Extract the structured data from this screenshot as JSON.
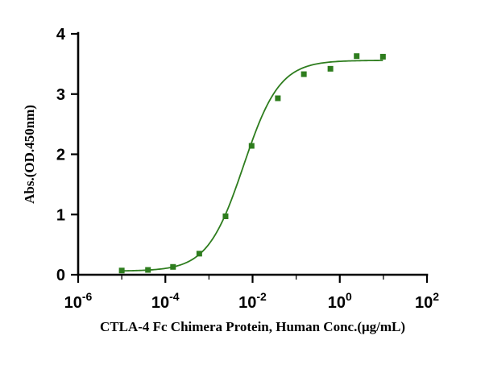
{
  "chart_data": {
    "type": "scatter",
    "xscale": "log",
    "xlabel": "CTLA-4 Fc Chimera Protein, Human Conc.(μg/mL)",
    "ylabel": "Abs.(OD.450nm)",
    "xlim": [
      1e-06,
      100
    ],
    "ylim": [
      0,
      4
    ],
    "x_ticks": [
      {
        "base": "10",
        "exp": "-6"
      },
      {
        "base": "10",
        "exp": "-4"
      },
      {
        "base": "10",
        "exp": "-2"
      },
      {
        "base": "10",
        "exp": "0"
      },
      {
        "base": "10",
        "exp": "2"
      }
    ],
    "y_ticks": [
      "0",
      "1",
      "2",
      "3",
      "4"
    ],
    "grid": false,
    "series": [
      {
        "color": "#2e7d1e",
        "marker": "square",
        "x": [
          1e-05,
          4e-05,
          0.00015,
          0.0006,
          0.0024,
          0.0095,
          0.038,
          0.15,
          0.61,
          2.44,
          9.77
        ],
        "y": [
          0.07,
          0.08,
          0.13,
          0.35,
          0.97,
          2.14,
          2.93,
          3.33,
          3.42,
          3.63,
          3.62
        ]
      }
    ],
    "fit_curve": {
      "color": "#2e7d1e",
      "model": "4PL",
      "bottom": 0.06,
      "top": 3.56,
      "ec50": 0.0062,
      "hill": 1.05
    }
  }
}
